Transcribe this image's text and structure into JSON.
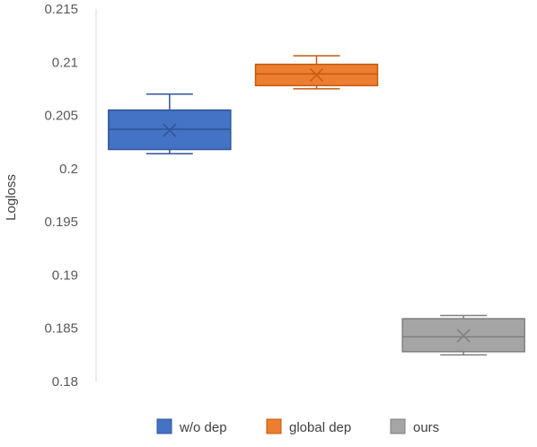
{
  "chart_data": {
    "type": "box",
    "title": "",
    "xlabel": "",
    "ylabel": "Logloss",
    "ylim": [
      0.18,
      0.215
    ],
    "yticks": [
      "0.18",
      "0.185",
      "0.19",
      "0.195",
      "0.2",
      "0.205",
      "0.21",
      "0.215"
    ],
    "grid": false,
    "legend_position": "bottom",
    "series": [
      {
        "name": "w/o dep",
        "color": "#4472C4",
        "min": 0.2014,
        "q1": 0.2018,
        "median": 0.2037,
        "q3": 0.2055,
        "max": 0.207,
        "mean": 0.2036
      },
      {
        "name": "global dep",
        "color": "#ED7D31",
        "min": 0.2075,
        "q1": 0.2078,
        "median": 0.2089,
        "q3": 0.2098,
        "max": 0.2106,
        "mean": 0.2088
      },
      {
        "name": "ours",
        "color": "#A5A5A5",
        "min": 0.1825,
        "q1": 0.1828,
        "median": 0.1842,
        "q3": 0.1859,
        "max": 0.1862,
        "mean": 0.1843
      }
    ]
  }
}
